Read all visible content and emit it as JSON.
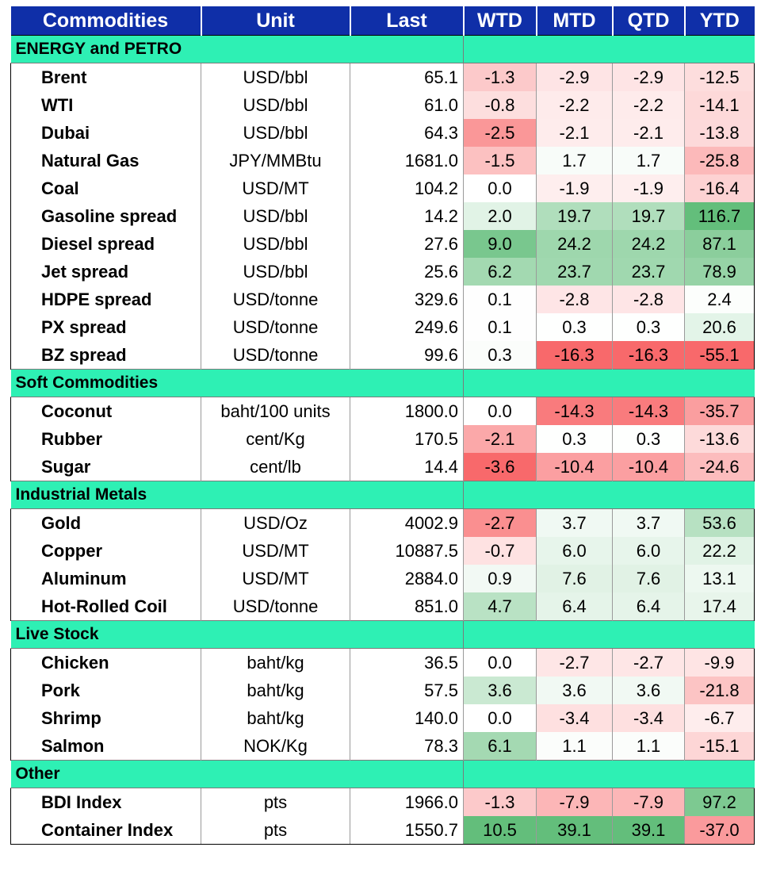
{
  "header": [
    "Commodities",
    "Unit",
    "Last",
    "WTD",
    "MTD",
    "QTD",
    "YTD"
  ],
  "sections": [
    {
      "title": "ENERGY and PETRO",
      "rows": [
        {
          "name": "Brent",
          "unit": "USD/bbl",
          "last": "65.1",
          "wtd": "-1.3",
          "mtd": "-2.9",
          "qtd": "-2.9",
          "ytd": "-12.5"
        },
        {
          "name": "WTI",
          "unit": "USD/bbl",
          "last": "61.0",
          "wtd": "-0.8",
          "mtd": "-2.2",
          "qtd": "-2.2",
          "ytd": "-14.1"
        },
        {
          "name": "Dubai",
          "unit": "USD/bbl",
          "last": "64.3",
          "wtd": "-2.5",
          "mtd": "-2.1",
          "qtd": "-2.1",
          "ytd": "-13.8"
        },
        {
          "name": "Natural Gas",
          "unit": "JPY/MMBtu",
          "last": "1681.0",
          "wtd": "-1.5",
          "mtd": "1.7",
          "qtd": "1.7",
          "ytd": "-25.8"
        },
        {
          "name": "Coal",
          "unit": "USD/MT",
          "last": "104.2",
          "wtd": "0.0",
          "mtd": "-1.9",
          "qtd": "-1.9",
          "ytd": "-16.4"
        },
        {
          "name": "Gasoline spread",
          "unit": "USD/bbl",
          "last": "14.2",
          "wtd": "2.0",
          "mtd": "19.7",
          "qtd": "19.7",
          "ytd": "116.7"
        },
        {
          "name": "Diesel spread",
          "unit": "USD/bbl",
          "last": "27.6",
          "wtd": "9.0",
          "mtd": "24.2",
          "qtd": "24.2",
          "ytd": "87.1"
        },
        {
          "name": "Jet spread",
          "unit": "USD/bbl",
          "last": "25.6",
          "wtd": "6.2",
          "mtd": "23.7",
          "qtd": "23.7",
          "ytd": "78.9"
        },
        {
          "name": "HDPE spread",
          "unit": "USD/tonne",
          "last": "329.6",
          "wtd": "0.1",
          "mtd": "-2.8",
          "qtd": "-2.8",
          "ytd": "2.4"
        },
        {
          "name": "PX spread",
          "unit": "USD/tonne",
          "last": "249.6",
          "wtd": "0.1",
          "mtd": "0.3",
          "qtd": "0.3",
          "ytd": "20.6"
        },
        {
          "name": "BZ spread",
          "unit": "USD/tonne",
          "last": "99.6",
          "wtd": "0.3",
          "mtd": "-16.3",
          "qtd": "-16.3",
          "ytd": "-55.1"
        }
      ]
    },
    {
      "title": "Soft Commodities",
      "rows": [
        {
          "name": "Coconut",
          "unit": "baht/100 units",
          "last": "1800.0",
          "wtd": "0.0",
          "mtd": "-14.3",
          "qtd": "-14.3",
          "ytd": "-35.7"
        },
        {
          "name": "Rubber",
          "unit": "cent/Kg",
          "last": "170.5",
          "wtd": "-2.1",
          "mtd": "0.3",
          "qtd": "0.3",
          "ytd": "-13.6"
        },
        {
          "name": "Sugar",
          "unit": "cent/lb",
          "last": "14.4",
          "wtd": "-3.6",
          "mtd": "-10.4",
          "qtd": "-10.4",
          "ytd": "-24.6"
        }
      ]
    },
    {
      "title": "Industrial Metals",
      "rows": [
        {
          "name": "Gold",
          "unit": "USD/Oz",
          "last": "4002.9",
          "wtd": "-2.7",
          "mtd": "3.7",
          "qtd": "3.7",
          "ytd": "53.6"
        },
        {
          "name": "Copper",
          "unit": "USD/MT",
          "last": "10887.5",
          "wtd": "-0.7",
          "mtd": "6.0",
          "qtd": "6.0",
          "ytd": "22.2"
        },
        {
          "name": "Aluminum",
          "unit": "USD/MT",
          "last": "2884.0",
          "wtd": "0.9",
          "mtd": "7.6",
          "qtd": "7.6",
          "ytd": "13.1"
        },
        {
          "name": "Hot-Rolled Coil",
          "unit": "USD/tonne",
          "last": "851.0",
          "wtd": "4.7",
          "mtd": "6.4",
          "qtd": "6.4",
          "ytd": "17.4"
        }
      ]
    },
    {
      "title": "Live Stock",
      "rows": [
        {
          "name": "Chicken",
          "unit": "baht/kg",
          "last": "36.5",
          "wtd": "0.0",
          "mtd": "-2.7",
          "qtd": "-2.7",
          "ytd": "-9.9"
        },
        {
          "name": "Pork",
          "unit": "baht/kg",
          "last": "57.5",
          "wtd": "3.6",
          "mtd": "3.6",
          "qtd": "3.6",
          "ytd": "-21.8"
        },
        {
          "name": "Shrimp",
          "unit": "baht/kg",
          "last": "140.0",
          "wtd": "0.0",
          "mtd": "-3.4",
          "qtd": "-3.4",
          "ytd": "-6.7"
        },
        {
          "name": "Salmon",
          "unit": "NOK/Kg",
          "last": "78.3",
          "wtd": "6.1",
          "mtd": "1.1",
          "qtd": "1.1",
          "ytd": "-15.1"
        }
      ]
    },
    {
      "title": "Other",
      "rows": [
        {
          "name": "BDI Index",
          "unit": "pts",
          "last": "1966.0",
          "wtd": "-1.3",
          "mtd": "-7.9",
          "qtd": "-7.9",
          "ytd": "97.2"
        },
        {
          "name": "Container Index",
          "unit": "pts",
          "last": "1550.7",
          "wtd": "10.5",
          "mtd": "39.1",
          "qtd": "39.1",
          "ytd": "-37.0"
        }
      ]
    }
  ],
  "colors": {
    "header_bg": "#0f2fa8",
    "header_text": "#ffffff",
    "section_bg": "#2ef0b4",
    "positive_max": "#63be7b",
    "negative_max": "#f8696b",
    "neutral": "#ffffff"
  }
}
